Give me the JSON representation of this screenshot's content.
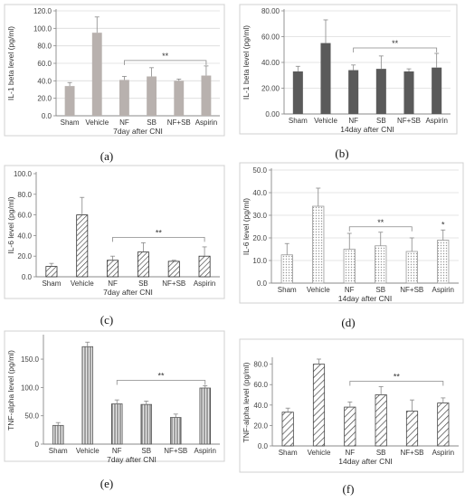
{
  "figure": {
    "panels": [
      {
        "label": "(a)"
      },
      {
        "label": "(b)"
      },
      {
        "label": "(c)"
      },
      {
        "label": "(d)"
      },
      {
        "label": "(e)"
      },
      {
        "label": "(f)"
      }
    ]
  },
  "chart_data": [
    {
      "type": "bar",
      "panel": "(a)",
      "ylabel": "IL-1 beta level (pg/ml)",
      "xlabel": "7day after CNI",
      "categories": [
        "Sham",
        "Vehicle",
        "NF",
        "SB",
        "NF+SB",
        "Aspirin"
      ],
      "values": [
        34,
        95,
        41,
        45,
        40,
        46
      ],
      "errors": [
        4,
        18,
        4,
        10,
        2,
        11
      ],
      "ylim": [
        0,
        120
      ],
      "yticks": [
        "0.0",
        "20.0",
        "40.0",
        "60.0",
        "80.0",
        "100.0",
        "120.0"
      ],
      "grid": true,
      "fill": "solid",
      "color": "#b8b1ae",
      "significance": {
        "label": "**",
        "from": 2,
        "to": 5
      }
    },
    {
      "type": "bar",
      "panel": "(b)",
      "ylabel": "IL-1 beta level (pg/ml)",
      "xlabel": "14day after CNI",
      "categories": [
        "Sham",
        "Vehicle",
        "NF",
        "SB",
        "NF+SB",
        "Aspirin"
      ],
      "values": [
        33,
        55,
        34,
        35,
        33,
        36
      ],
      "errors": [
        4,
        18,
        4,
        10,
        2,
        11
      ],
      "ylim": [
        0,
        80
      ],
      "yticks": [
        "0.00",
        "20.00",
        "40.00",
        "60.00",
        "80.00"
      ],
      "grid": true,
      "fill": "solid",
      "color": "#5a5a5a",
      "significance": {
        "label": "**",
        "from": 2,
        "to": 5
      }
    },
    {
      "type": "bar",
      "panel": "(c)",
      "ylabel": "IL-6 level (pg/ml)",
      "xlabel": "7day after CNI",
      "categories": [
        "Sham",
        "Vehicle",
        "NF",
        "SB",
        "NF+SB",
        "Aspirin"
      ],
      "values": [
        10,
        60,
        16,
        24,
        15,
        20
      ],
      "errors": [
        3,
        17,
        4,
        9,
        1,
        9
      ],
      "ylim": [
        0,
        100
      ],
      "yticks": [
        "0.0",
        "20.0",
        "40.0",
        "60.0",
        "80.0",
        "100.0"
      ],
      "grid": false,
      "fill": "hatch-thin",
      "color": "#333333",
      "significance": {
        "label": "**",
        "from": 2,
        "to": 5
      }
    },
    {
      "type": "bar",
      "panel": "(d)",
      "ylabel": "IL-6 level (pg/ml)",
      "xlabel": "14day after CNI",
      "categories": [
        "Sham",
        "Vehicle",
        "NF",
        "SB",
        "NF+SB",
        "Aspirin"
      ],
      "values": [
        12.5,
        34,
        15,
        16.5,
        14,
        19
      ],
      "errors": [
        5,
        8,
        7,
        6,
        6,
        4.5
      ],
      "ylim": [
        0,
        50
      ],
      "yticks": [
        "0.0",
        "10.0",
        "20.0",
        "30.0",
        "40.0",
        "50.0"
      ],
      "grid": true,
      "fill": "dots",
      "color": "#999999",
      "significance": {
        "label": "**",
        "from": 2,
        "to": 4
      },
      "extra_marks": [
        {
          "label": "*",
          "index": 5
        }
      ]
    },
    {
      "type": "bar",
      "panel": "(e)",
      "ylabel": "TNF-alpha level (pg/ml)",
      "xlabel": "7day after CNI",
      "categories": [
        "Sham",
        "Vehicle",
        "NF",
        "SB",
        "NF+SB",
        "Aspirin"
      ],
      "values": [
        33,
        172,
        71,
        70,
        47,
        99
      ],
      "errors": [
        5,
        8,
        7,
        6,
        6,
        4
      ],
      "ylim": [
        0,
        190
      ],
      "yticks": [
        "0",
        "50.0",
        "100.0",
        "150.0"
      ],
      "ytick_values": [
        0,
        50,
        100,
        150
      ],
      "grid": false,
      "fill": "vlines",
      "color": "#555555",
      "significance": {
        "label": "**",
        "from": 2,
        "to": 5
      }
    },
    {
      "type": "bar",
      "panel": "(f)",
      "ylabel": "TNF-alpha level (pg/ml)",
      "xlabel": "14day after CNI",
      "categories": [
        "Sham",
        "Vehicle",
        "NF",
        "SB",
        "NF+SB",
        "Aspirin"
      ],
      "values": [
        33,
        80,
        38,
        50,
        34,
        42
      ],
      "errors": [
        4,
        5,
        5,
        8,
        11,
        5
      ],
      "ylim": [
        0,
        85
      ],
      "yticks": [
        "0.0",
        "20.0",
        "40.0",
        "60.0",
        "80.0"
      ],
      "ytick_values": [
        0,
        20,
        40,
        60,
        80
      ],
      "grid": false,
      "fill": "hatch-thick",
      "color": "#444444",
      "significance": {
        "label": "**",
        "from": 2,
        "to": 5
      }
    }
  ]
}
